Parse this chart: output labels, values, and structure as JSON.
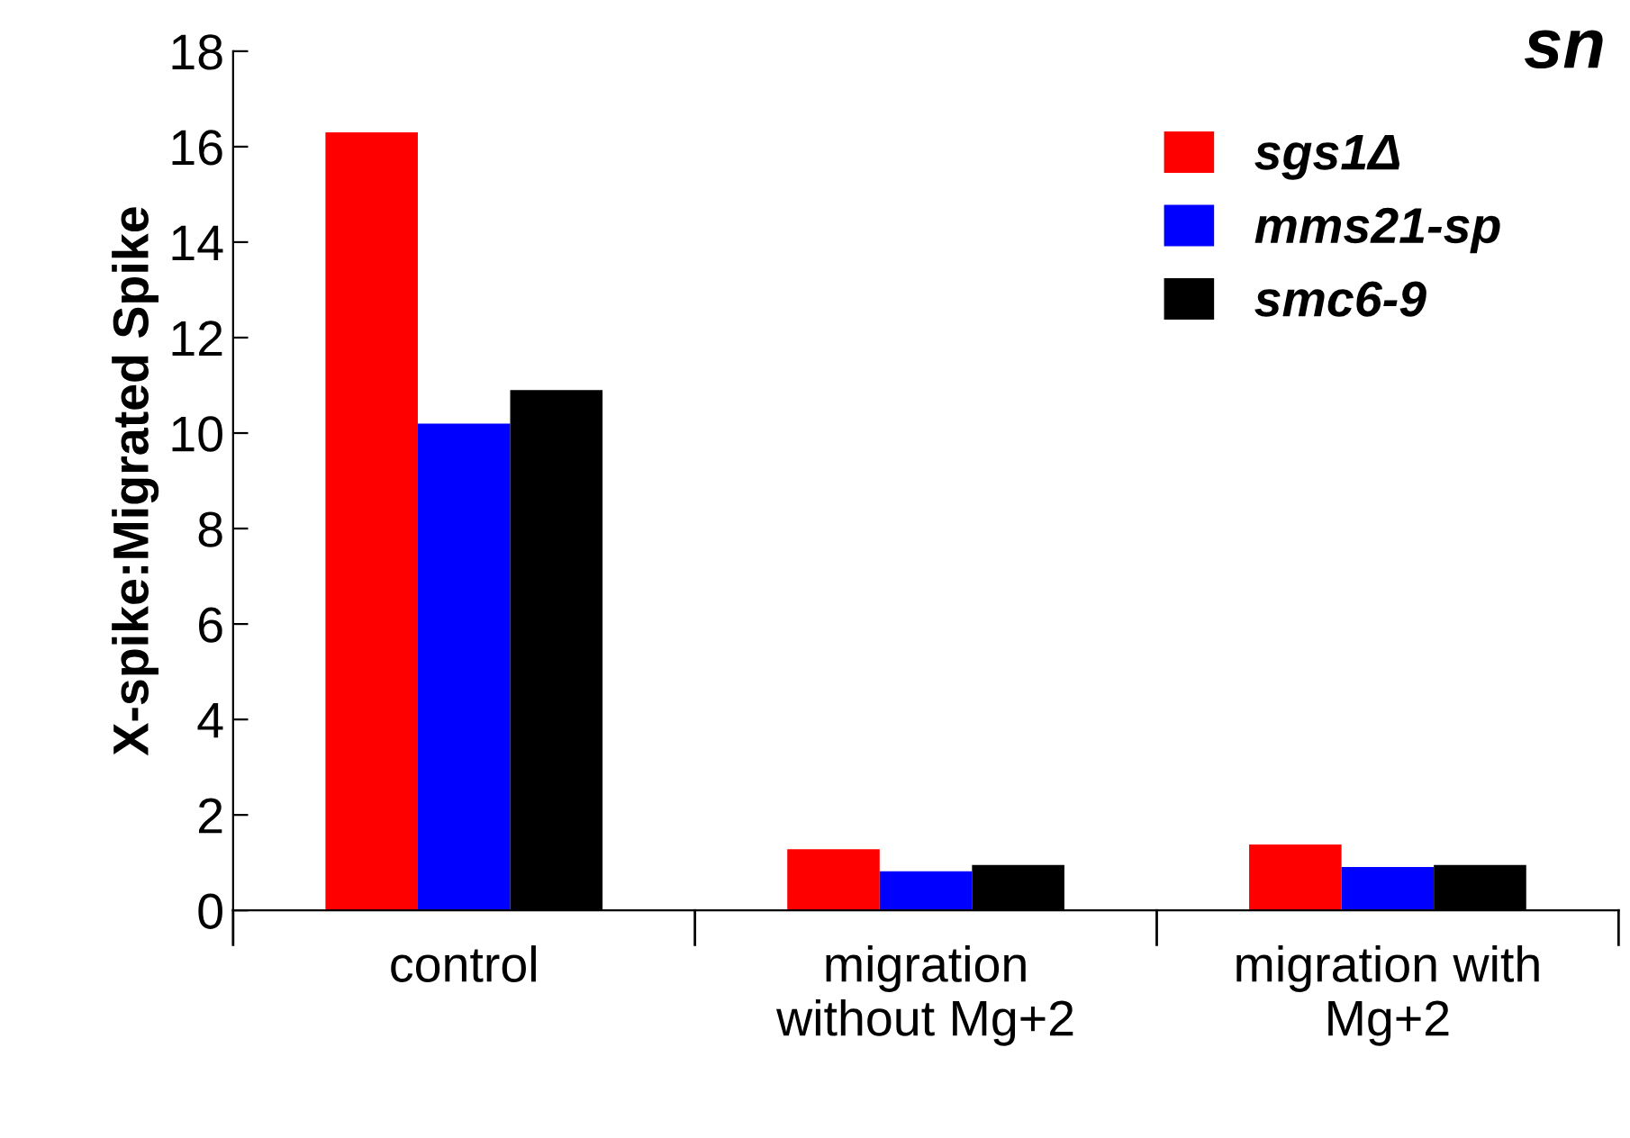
{
  "chart_data": {
    "type": "bar",
    "ylabel": "X-spike:Migrated Spike",
    "categories": [
      "control",
      "migration\nwithout Mg+2",
      "migration with\nMg+2"
    ],
    "series": [
      {
        "name": "sgs1Δ",
        "color": "#ff0000",
        "values": [
          16.3,
          1.28,
          1.38
        ]
      },
      {
        "name": "mms21-sp",
        "color": "#0000ff",
        "values": [
          10.2,
          0.82,
          0.91
        ]
      },
      {
        "name": "smc6-9",
        "color": "#000000",
        "values": [
          10.9,
          0.95,
          0.95
        ]
      }
    ],
    "ylim": [
      0,
      18
    ],
    "yticks": [
      0,
      2,
      4,
      6,
      8,
      10,
      12,
      14,
      16,
      18
    ],
    "annotations": [
      "sn"
    ],
    "legend": "top right",
    "grid": false
  }
}
